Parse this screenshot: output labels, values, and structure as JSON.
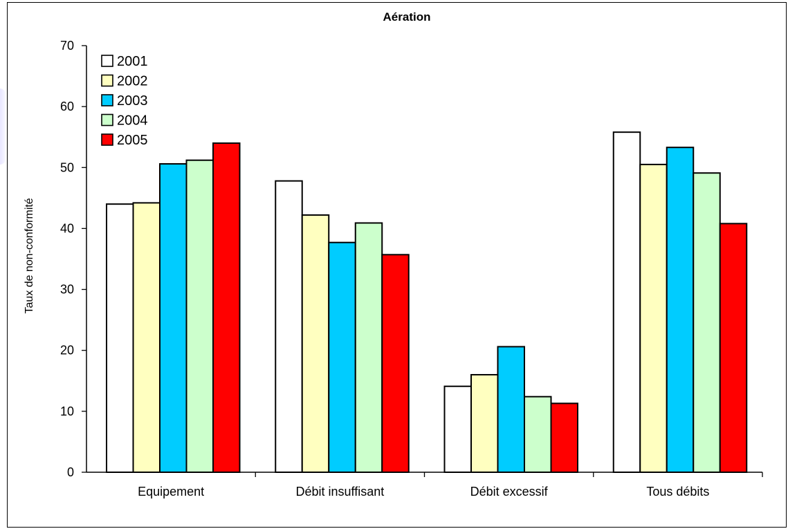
{
  "chart_data": {
    "type": "bar",
    "title": "Aération",
    "xlabel": "",
    "ylabel": "Taux de non-conformité",
    "categories": [
      "Equipement",
      "Débit insuffisant",
      "Débit excessif",
      "Tous débits"
    ],
    "ylim": [
      0,
      70
    ],
    "yticks": [
      0,
      10,
      20,
      30,
      40,
      50,
      60,
      70
    ],
    "yticks_labels": [
      "0",
      "10",
      "20",
      "30",
      "40",
      "50",
      "60",
      "70"
    ],
    "grid": false,
    "legend_position": "top-left",
    "series": [
      {
        "name": "2001",
        "color": "#ffffff",
        "values": [
          44.0,
          47.8,
          14.1,
          55.8
        ]
      },
      {
        "name": "2002",
        "color": "#ffffc0",
        "values": [
          44.2,
          42.2,
          16.0,
          50.5
        ]
      },
      {
        "name": "2003",
        "color": "#00ccff",
        "values": [
          50.6,
          37.7,
          20.6,
          53.3
        ]
      },
      {
        "name": "2004",
        "color": "#ccffcc",
        "values": [
          51.2,
          40.9,
          12.4,
          49.1
        ]
      },
      {
        "name": "2005",
        "color": "#ff0000",
        "values": [
          54.0,
          35.7,
          11.3,
          40.8
        ]
      }
    ]
  }
}
